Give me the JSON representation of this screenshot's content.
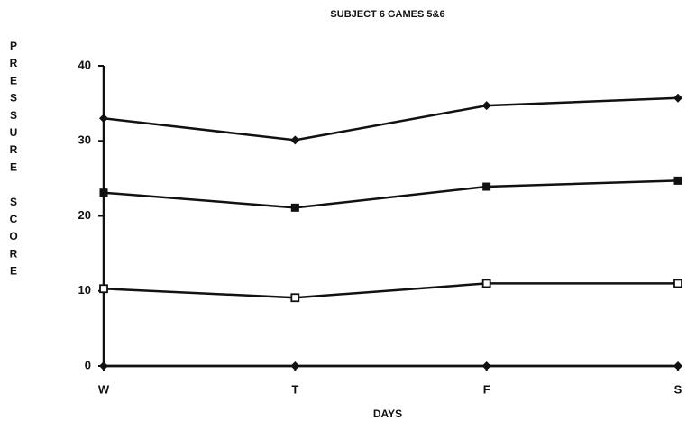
{
  "chart_data": {
    "type": "line",
    "title": "SUBJECT 6 GAMES 5&6",
    "xlabel": "DAYS",
    "ylabel": "PRESSURE SCORE",
    "categories": [
      "W",
      "T",
      "F",
      "S"
    ],
    "series": [
      {
        "color": "#111111",
        "marker": "diamond",
        "values": [
          33,
          30.1,
          34.7,
          35.7
        ]
      },
      {
        "color": "#111111",
        "marker": "square",
        "values": [
          23.1,
          21.1,
          23.9,
          24.7
        ]
      },
      {
        "color": "#111111",
        "marker": "open-square",
        "values": [
          10.3,
          9.1,
          11,
          11
        ]
      },
      {
        "color": "#111111",
        "marker": "diamond",
        "values": [
          0,
          0,
          0,
          0
        ]
      }
    ],
    "ylim": [
      0,
      40
    ],
    "yticks": [
      0,
      10,
      20,
      30,
      40
    ],
    "grid": false
  }
}
